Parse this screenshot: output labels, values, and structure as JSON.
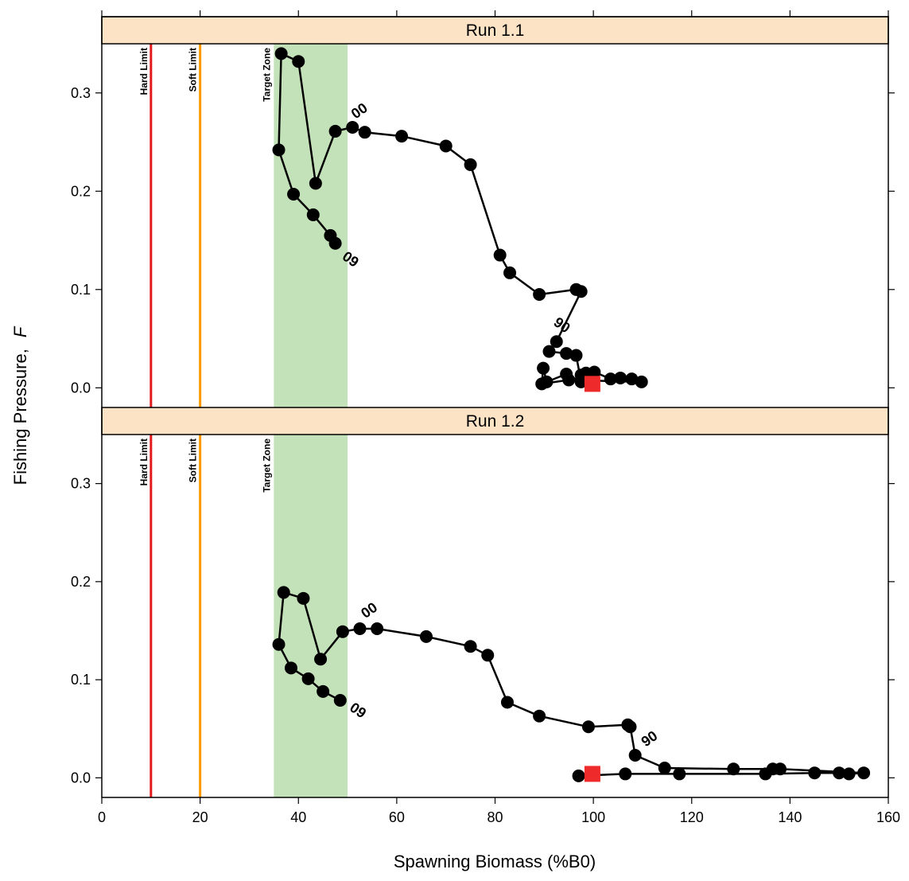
{
  "chart_data": {
    "type": "line",
    "xlabel": "Spawning Biomass (%B0)",
    "ylabel": "Fishing Pressure,",
    "ylabel_symbol": "F",
    "xlim": [
      0,
      160
    ],
    "ylim": [
      -0.02,
      0.35
    ],
    "x_ticks": [
      "0",
      "20",
      "40",
      "60",
      "80",
      "100",
      "120",
      "140",
      "160"
    ],
    "y_ticks": [
      "0.0",
      "0.1",
      "0.2",
      "0.3"
    ],
    "reference_lines": {
      "hard_limit": {
        "label": "Hard Limit",
        "x": 10,
        "color": "#e31a1c"
      },
      "soft_limit": {
        "label": "Soft Limit",
        "x": 20,
        "color": "#ff9900"
      },
      "target_zone": {
        "label": "Target Zone",
        "x_range": [
          35,
          50
        ],
        "color": "#c4e2b9"
      }
    },
    "colors": {
      "strip": "#fde3c6",
      "points": "#000000",
      "current_marker": "#ee2a2a"
    },
    "panels": [
      {
        "name": "Run 1.1",
        "points": [
          [
            100.0,
            0.004
          ],
          [
            98.5,
            0.015
          ],
          [
            97.5,
            0.013
          ],
          [
            100.2,
            0.016
          ],
          [
            103.5,
            0.009
          ],
          [
            105.5,
            0.01
          ],
          [
            107.8,
            0.009
          ],
          [
            109.8,
            0.006
          ],
          [
            95.0,
            0.008
          ],
          [
            89.5,
            0.004
          ],
          [
            89.8,
            0.02
          ],
          [
            90.5,
            0.006
          ],
          [
            94.5,
            0.014
          ],
          [
            97.5,
            0.006
          ],
          [
            96.5,
            0.033
          ],
          [
            94.5,
            0.035
          ],
          [
            91.0,
            0.037
          ],
          [
            92.5,
            0.047
          ],
          [
            97.5,
            0.098
          ],
          [
            96.5,
            0.1
          ],
          [
            89.0,
            0.095
          ],
          [
            83.0,
            0.117
          ],
          [
            81.0,
            0.135
          ],
          [
            75.0,
            0.227
          ],
          [
            70.0,
            0.246
          ],
          [
            61.0,
            0.256
          ],
          [
            53.5,
            0.26
          ],
          [
            51.0,
            0.265
          ],
          [
            47.5,
            0.261
          ],
          [
            43.5,
            0.208
          ],
          [
            40.0,
            0.332
          ],
          [
            36.5,
            0.34
          ],
          [
            36.0,
            0.242
          ],
          [
            39.0,
            0.197
          ],
          [
            43.0,
            0.176
          ],
          [
            46.5,
            0.155
          ],
          [
            47.5,
            0.147
          ]
        ],
        "current": [
          99.8,
          0.004
        ],
        "year_labels": [
          {
            "text": "90",
            "x": 93.5,
            "y": 0.063,
            "angle": 35
          },
          {
            "text": "00",
            "x": 52.5,
            "y": 0.281,
            "angle": -35
          },
          {
            "text": "09",
            "x": 50.5,
            "y": 0.13,
            "angle": 35
          }
        ]
      },
      {
        "name": "Run 1.2",
        "points": [
          [
            97.0,
            0.002
          ],
          [
            106.5,
            0.004
          ],
          [
            117.5,
            0.004
          ],
          [
            135.0,
            0.004
          ],
          [
            145.0,
            0.005
          ],
          [
            150.0,
            0.005
          ],
          [
            152.0,
            0.004
          ],
          [
            155.0,
            0.005
          ],
          [
            138.0,
            0.009
          ],
          [
            136.5,
            0.009
          ],
          [
            128.5,
            0.009
          ],
          [
            114.5,
            0.01
          ],
          [
            108.5,
            0.023
          ],
          [
            107.5,
            0.052
          ],
          [
            107.0,
            0.054
          ],
          [
            99.0,
            0.052
          ],
          [
            89.0,
            0.063
          ],
          [
            82.5,
            0.077
          ],
          [
            78.5,
            0.125
          ],
          [
            75.0,
            0.134
          ],
          [
            66.0,
            0.144
          ],
          [
            56.0,
            0.152
          ],
          [
            52.5,
            0.152
          ],
          [
            49.0,
            0.149
          ],
          [
            44.5,
            0.121
          ],
          [
            41.0,
            0.183
          ],
          [
            37.0,
            0.189
          ],
          [
            36.0,
            0.136
          ],
          [
            38.5,
            0.112
          ],
          [
            42.0,
            0.101
          ],
          [
            45.0,
            0.088
          ],
          [
            48.5,
            0.079
          ]
        ],
        "current": [
          99.8,
          0.004
        ],
        "year_labels": [
          {
            "text": "00",
            "x": 54.5,
            "y": 0.17,
            "angle": -35
          },
          {
            "text": "90",
            "x": 111.5,
            "y": 0.039,
            "angle": -35
          },
          {
            "text": "09",
            "x": 52.0,
            "y": 0.068,
            "angle": 35
          }
        ]
      }
    ]
  }
}
